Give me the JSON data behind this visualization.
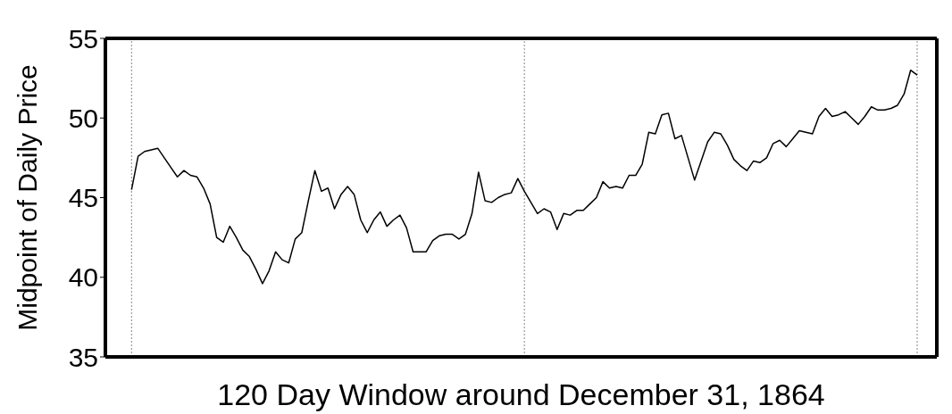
{
  "chart_data": {
    "type": "line",
    "xlabel": "120 Day Window around December 31, 1864",
    "ylabel": "Midpoint of Daily Price",
    "categories": [
      null,
      null,
      null,
      null,
      null,
      null,
      null,
      null,
      null,
      null,
      null,
      null,
      null,
      null,
      null,
      null,
      null,
      null,
      null,
      null,
      null,
      null,
      null,
      null,
      null,
      null,
      null,
      null,
      null,
      null,
      null,
      null,
      null,
      null,
      null,
      null,
      null,
      null,
      null,
      null,
      null,
      null,
      null,
      null,
      null,
      null,
      null,
      null,
      null,
      null,
      null,
      null,
      null,
      null,
      null,
      null,
      null,
      null,
      null,
      null,
      null,
      null,
      null,
      null,
      null,
      null,
      null,
      null,
      null,
      null,
      null,
      null,
      null,
      null,
      null,
      null,
      null,
      null,
      null,
      null,
      null,
      null,
      null,
      null,
      null,
      null,
      null,
      null,
      null,
      null,
      null,
      null,
      null,
      null,
      null,
      null,
      null,
      null,
      null,
      null,
      null,
      null,
      null,
      null,
      null,
      null,
      null,
      null,
      null,
      null,
      null,
      null,
      null,
      null,
      null,
      null,
      null,
      null,
      null,
      null,
      null
    ],
    "ylim": [
      35,
      55
    ],
    "yticks": [
      35,
      40,
      45,
      50,
      55
    ],
    "marker": "none",
    "line_style": "solid",
    "legend": false,
    "grid": "x",
    "series": [
      {
        "color": "#000000",
        "values": [
          45.5,
          47.6,
          47.9,
          48.0,
          48.1,
          47.5,
          46.9,
          46.3,
          46.7,
          46.4,
          46.3,
          45.6,
          44.6,
          42.5,
          42.2,
          43.2,
          42.5,
          41.7,
          41.3,
          40.5,
          39.6,
          40.4,
          41.6,
          41.1,
          40.9,
          42.4,
          42.8,
          44.8,
          46.7,
          45.4,
          45.6,
          44.3,
          45.2,
          45.7,
          45.2,
          43.6,
          42.8,
          43.6,
          44.1,
          43.2,
          43.6,
          43.9,
          43.1,
          41.6,
          41.6,
          41.6,
          42.3,
          42.6,
          42.7,
          42.7,
          42.4,
          42.7,
          44.0,
          46.6,
          44.8,
          44.7,
          45.0,
          45.2,
          45.3,
          46.2,
          45.4,
          44.7,
          44.0,
          44.3,
          44.1,
          43.0,
          44.0,
          43.9,
          44.2,
          44.2,
          44.6,
          45.0,
          46.0,
          45.6,
          45.7,
          45.6,
          46.4,
          46.4,
          47.1,
          49.1,
          49.0,
          50.2,
          50.3,
          48.7,
          48.9,
          47.5,
          46.1,
          47.3,
          48.5,
          49.1,
          49.0,
          48.3,
          47.4,
          47.0,
          46.7,
          47.3,
          47.2,
          47.5,
          48.4,
          48.6,
          48.2,
          48.7,
          49.2,
          49.1,
          49.0,
          50.1,
          50.6,
          50.1,
          50.2,
          50.4,
          50.0,
          49.6,
          50.1,
          50.7,
          50.5,
          50.5,
          50.6,
          50.8,
          51.5,
          53.0,
          52.7
        ]
      }
    ]
  }
}
